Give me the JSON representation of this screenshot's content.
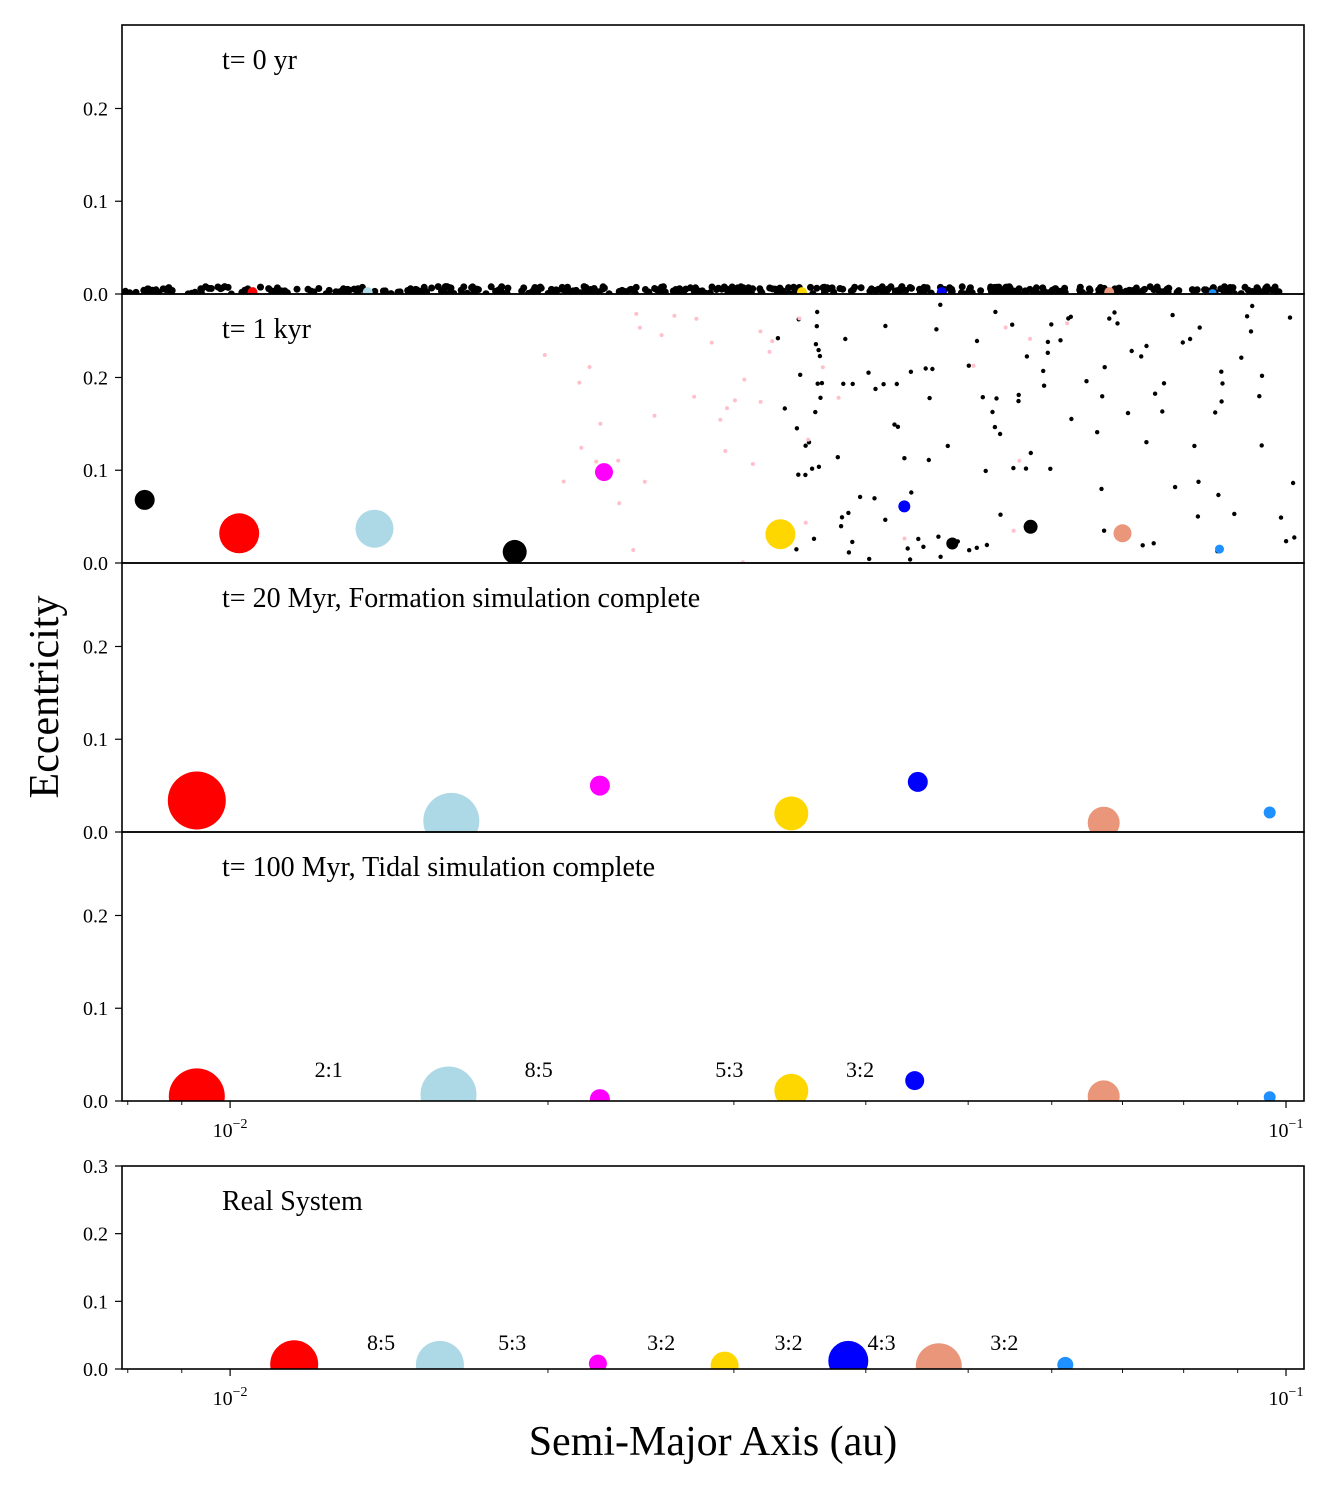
{
  "chart_data": {
    "type": "scatter",
    "xlabel": "Semi-Major Axis (au)",
    "ylabel": "Eccentricity",
    "xscale": "log",
    "xlim": [
      0.0079,
      0.104
    ],
    "xtick_labels": [
      {
        "x": 0.01,
        "base": "10",
        "exp": "−2"
      },
      {
        "x": 0.1,
        "base": "10",
        "exp": "−1"
      }
    ],
    "colors": {
      "black": "#000000",
      "red": "#ff0000",
      "lightblue": "#add8e6",
      "magenta": "#ff00ff",
      "gold": "#ffd700",
      "blue": "#0000ff",
      "darksalmon": "#e9967a",
      "dodgerblue": "#1e90ff",
      "pink": "#ffc0cb"
    },
    "panels": [
      {
        "title": "t= 0 yr",
        "ylim": [
          0,
          0.29
        ],
        "yticks": [
          "0.0",
          "0.1",
          "0.2"
        ],
        "yticks_val": [
          0,
          0.1,
          0.2
        ],
        "show_xticks": false,
        "bodies": [
          {
            "a": 0.0105,
            "e": 0.002,
            "size": 5,
            "color": "red"
          },
          {
            "a": 0.0135,
            "e": 0.002,
            "size": 5,
            "color": "lightblue"
          },
          {
            "a": 0.0348,
            "e": 0.002,
            "size": 5,
            "color": "gold"
          },
          {
            "a": 0.0472,
            "e": 0.002,
            "size": 5,
            "color": "blue"
          },
          {
            "a": 0.068,
            "e": 0.002,
            "size": 5,
            "color": "darksalmon"
          },
          {
            "a": 0.0852,
            "e": 0.001,
            "size": 4,
            "color": "dodgerblue"
          }
        ],
        "debris": {
          "color": "black",
          "count": 440,
          "a_min": 0.0079,
          "a_max": 0.0985,
          "e_max": 0.008,
          "seed": 11,
          "size": 3.5
        }
      },
      {
        "title": "t= 1 kyr",
        "ylim": [
          0,
          0.29
        ],
        "yticks": [
          "0.0",
          "0.1",
          "0.2"
        ],
        "yticks_val": [
          0,
          0.1,
          0.2
        ],
        "show_xticks": false,
        "bodies": [
          {
            "a": 0.0083,
            "e": 0.068,
            "size": 10,
            "color": "black"
          },
          {
            "a": 0.0102,
            "e": 0.032,
            "size": 20,
            "color": "red"
          },
          {
            "a": 0.0137,
            "e": 0.037,
            "size": 19,
            "color": "lightblue"
          },
          {
            "a": 0.0186,
            "e": 0.012,
            "size": 12,
            "color": "black"
          },
          {
            "a": 0.0226,
            "e": 0.098,
            "size": 9,
            "color": "magenta"
          },
          {
            "a": 0.0332,
            "e": 0.031,
            "size": 15,
            "color": "gold"
          },
          {
            "a": 0.0435,
            "e": 0.061,
            "size": 6,
            "color": "blue"
          },
          {
            "a": 0.0483,
            "e": 0.021,
            "size": 6,
            "color": "black"
          },
          {
            "a": 0.0573,
            "e": 0.039,
            "size": 7,
            "color": "black"
          },
          {
            "a": 0.07,
            "e": 0.032,
            "size": 9,
            "color": "darksalmon"
          },
          {
            "a": 0.0865,
            "e": 0.015,
            "size": 4.5,
            "color": "dodgerblue"
          }
        ],
        "debris": {
          "color": "black",
          "count": 135,
          "a_min": 0.033,
          "a_max": 0.102,
          "e_max": 0.28,
          "seed": 23,
          "size": 2.2
        },
        "debris2": {
          "color": "pink",
          "count": 42,
          "a_min": 0.0195,
          "a_max": 0.077,
          "e_max": 0.27,
          "seed": 37,
          "size": 2
        }
      },
      {
        "title": "t= 20 Myr, Formation simulation complete",
        "ylim": [
          0,
          0.29
        ],
        "yticks": [
          "0.0",
          "0.1",
          "0.2"
        ],
        "yticks_val": [
          0,
          0.1,
          0.2
        ],
        "show_xticks": false,
        "bodies": [
          {
            "a": 0.0093,
            "e": 0.034,
            "size": 29,
            "color": "red"
          },
          {
            "a": 0.0162,
            "e": 0.012,
            "size": 28,
            "color": "lightblue"
          },
          {
            "a": 0.0224,
            "e": 0.05,
            "size": 10,
            "color": "magenta"
          },
          {
            "a": 0.034,
            "e": 0.02,
            "size": 17,
            "color": "gold"
          },
          {
            "a": 0.0448,
            "e": 0.054,
            "size": 10,
            "color": "blue"
          },
          {
            "a": 0.0672,
            "e": 0.01,
            "size": 16,
            "color": "darksalmon"
          },
          {
            "a": 0.0965,
            "e": 0.021,
            "size": 6,
            "color": "dodgerblue"
          }
        ]
      },
      {
        "title": "t= 100 Myr, Tidal simulation complete",
        "ylim": [
          0,
          0.29
        ],
        "yticks": [
          "0.0",
          "0.1",
          "0.2"
        ],
        "yticks_val": [
          0,
          0.1,
          0.2
        ],
        "show_xticks": true,
        "bodies": [
          {
            "a": 0.0093,
            "e": 0.005,
            "size": 28,
            "color": "red"
          },
          {
            "a": 0.0161,
            "e": 0.007,
            "size": 28,
            "color": "lightblue"
          },
          {
            "a": 0.0224,
            "e": 0.002,
            "size": 10,
            "color": "magenta"
          },
          {
            "a": 0.034,
            "e": 0.011,
            "size": 17,
            "color": "gold"
          },
          {
            "a": 0.0445,
            "e": 0.022,
            "size": 9.5,
            "color": "blue"
          },
          {
            "a": 0.0672,
            "e": 0.005,
            "size": 16,
            "color": "darksalmon"
          },
          {
            "a": 0.0965,
            "e": 0.004,
            "size": 6,
            "color": "dodgerblue"
          }
        ],
        "resonance_labels": [
          {
            "text": "2:1",
            "a": 0.0124,
            "e": 0.026
          },
          {
            "text": "8:5",
            "a": 0.0196,
            "e": 0.026
          },
          {
            "text": "5:3",
            "a": 0.0297,
            "e": 0.026
          },
          {
            "text": "3:2",
            "a": 0.0395,
            "e": 0.026
          }
        ]
      },
      {
        "title": "Real System",
        "ylim": [
          0,
          0.3
        ],
        "yticks": [
          "0.0",
          "0.1",
          "0.2",
          "0.3"
        ],
        "yticks_val": [
          0,
          0.1,
          0.2,
          0.3
        ],
        "show_xticks": true,
        "bodies": [
          {
            "a": 0.0115,
            "e": 0.007,
            "size": 24,
            "color": "red"
          },
          {
            "a": 0.0158,
            "e": 0.006,
            "size": 24,
            "color": "lightblue"
          },
          {
            "a": 0.0223,
            "e": 0.008,
            "size": 9,
            "color": "magenta"
          },
          {
            "a": 0.0294,
            "e": 0.005,
            "size": 14,
            "color": "gold"
          },
          {
            "a": 0.0385,
            "e": 0.012,
            "size": 20,
            "color": "blue"
          },
          {
            "a": 0.0469,
            "e": 0.004,
            "size": 23,
            "color": "darksalmon"
          },
          {
            "a": 0.0618,
            "e": 0.006,
            "size": 8,
            "color": "dodgerblue"
          }
        ],
        "resonance_labels": [
          {
            "text": "8:5",
            "a": 0.0139,
            "e": 0.028
          },
          {
            "text": "5:3",
            "a": 0.0185,
            "e": 0.028
          },
          {
            "text": "3:2",
            "a": 0.0256,
            "e": 0.028
          },
          {
            "text": "3:2",
            "a": 0.0338,
            "e": 0.028
          },
          {
            "text": "4:3",
            "a": 0.0414,
            "e": 0.028
          },
          {
            "text": "3:2",
            "a": 0.0541,
            "e": 0.028
          }
        ]
      }
    ]
  }
}
